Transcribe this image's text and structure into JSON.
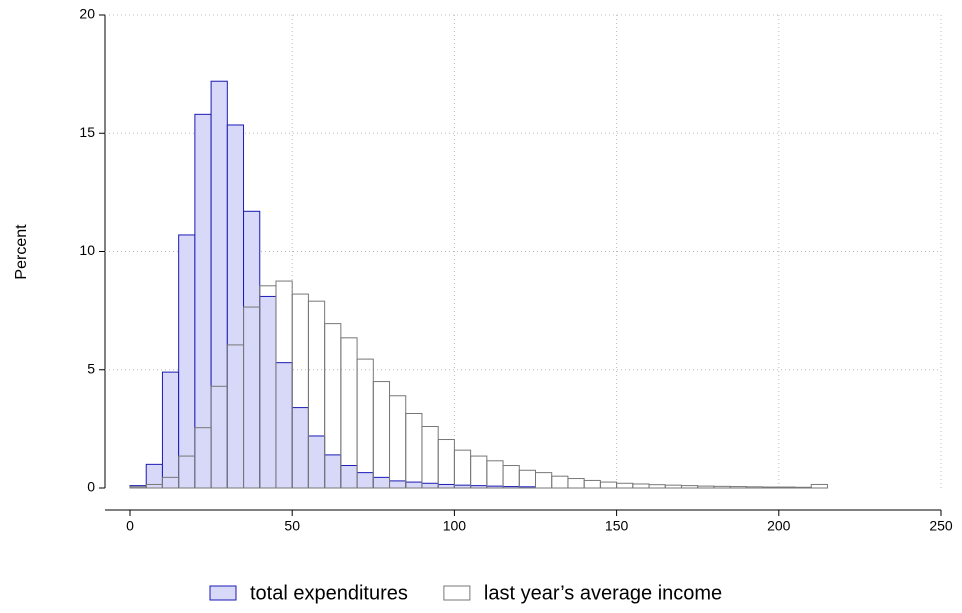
{
  "chart_data": {
    "type": "histogram",
    "y_label": "Percent",
    "xlim": [
      0,
      250
    ],
    "xticks": [
      0,
      50,
      100,
      150,
      200,
      250
    ],
    "ylim": [
      0,
      20
    ],
    "yticks": [
      0,
      5,
      10,
      15,
      20
    ],
    "grid": true,
    "legend": "bottom",
    "series": [
      {
        "name": "total expenditures",
        "color": "#1a1ab4",
        "fill": "#d8d8f8",
        "bins": [
          0,
          5,
          10,
          15,
          20,
          25,
          30,
          35,
          40,
          45,
          50,
          55,
          60,
          65,
          70,
          75,
          80,
          85,
          90,
          95,
          100,
          105,
          110,
          115,
          120,
          125
        ],
        "values": [
          0.1,
          1.0,
          4.9,
          10.7,
          15.8,
          17.2,
          15.35,
          11.7,
          8.1,
          5.3,
          3.4,
          2.2,
          1.4,
          0.95,
          0.65,
          0.45,
          0.3,
          0.25,
          0.2,
          0.15,
          0.12,
          0.1,
          0.08,
          0.06,
          0.05
        ]
      },
      {
        "name": "last year’s average income",
        "color": "#777777",
        "fill": "none",
        "bins": [
          0,
          5,
          10,
          15,
          20,
          25,
          30,
          35,
          40,
          45,
          50,
          55,
          60,
          65,
          70,
          75,
          80,
          85,
          90,
          95,
          100,
          105,
          110,
          115,
          120,
          125,
          130,
          135,
          140,
          145,
          150,
          155,
          160,
          165,
          170,
          175,
          180,
          185,
          190,
          195,
          200,
          205,
          210,
          215
        ],
        "values": [
          0.05,
          0.15,
          0.45,
          1.35,
          2.55,
          4.3,
          6.05,
          7.65,
          8.55,
          8.75,
          8.2,
          7.9,
          6.95,
          6.35,
          5.45,
          4.5,
          3.9,
          3.15,
          2.6,
          2.05,
          1.6,
          1.35,
          1.15,
          0.95,
          0.75,
          0.65,
          0.5,
          0.4,
          0.32,
          0.25,
          0.2,
          0.17,
          0.14,
          0.12,
          0.1,
          0.08,
          0.07,
          0.06,
          0.05,
          0.04,
          0.04,
          0.03,
          0.15
        ]
      }
    ]
  }
}
